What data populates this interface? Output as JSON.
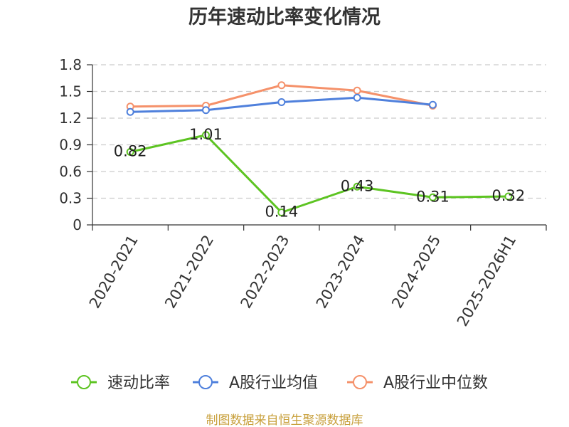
{
  "chart_data": {
    "type": "line",
    "title": "历年速动比率变化情况",
    "xlabel": "",
    "ylabel": "",
    "ylim": [
      0,
      1.8
    ],
    "yticks": [
      0,
      0.3,
      0.6,
      0.9,
      1.2,
      1.5,
      1.8
    ],
    "grid": "horizontal-dashed",
    "legend_position": "bottom",
    "categories": [
      "2020-2021",
      "2021-2022",
      "2022-2023",
      "2023-2024",
      "2024-2025",
      "2025-2026H1"
    ],
    "series": [
      {
        "name": "速动比率",
        "color": "#5dc422",
        "show_labels": true,
        "values": [
          0.82,
          1.01,
          0.14,
          0.43,
          0.31,
          0.32
        ]
      },
      {
        "name": "A股行业均值",
        "color": "#4f80dc",
        "show_labels": false,
        "values": [
          1.27,
          1.29,
          1.38,
          1.43,
          1.35,
          null
        ]
      },
      {
        "name": "A股行业中位数",
        "color": "#f5916a",
        "show_labels": false,
        "values": [
          1.33,
          1.34,
          1.57,
          1.51,
          1.34,
          null
        ]
      }
    ]
  },
  "footer": {
    "source": "制图数据来自恒生聚源数据库",
    "color": "#c8a03c"
  }
}
